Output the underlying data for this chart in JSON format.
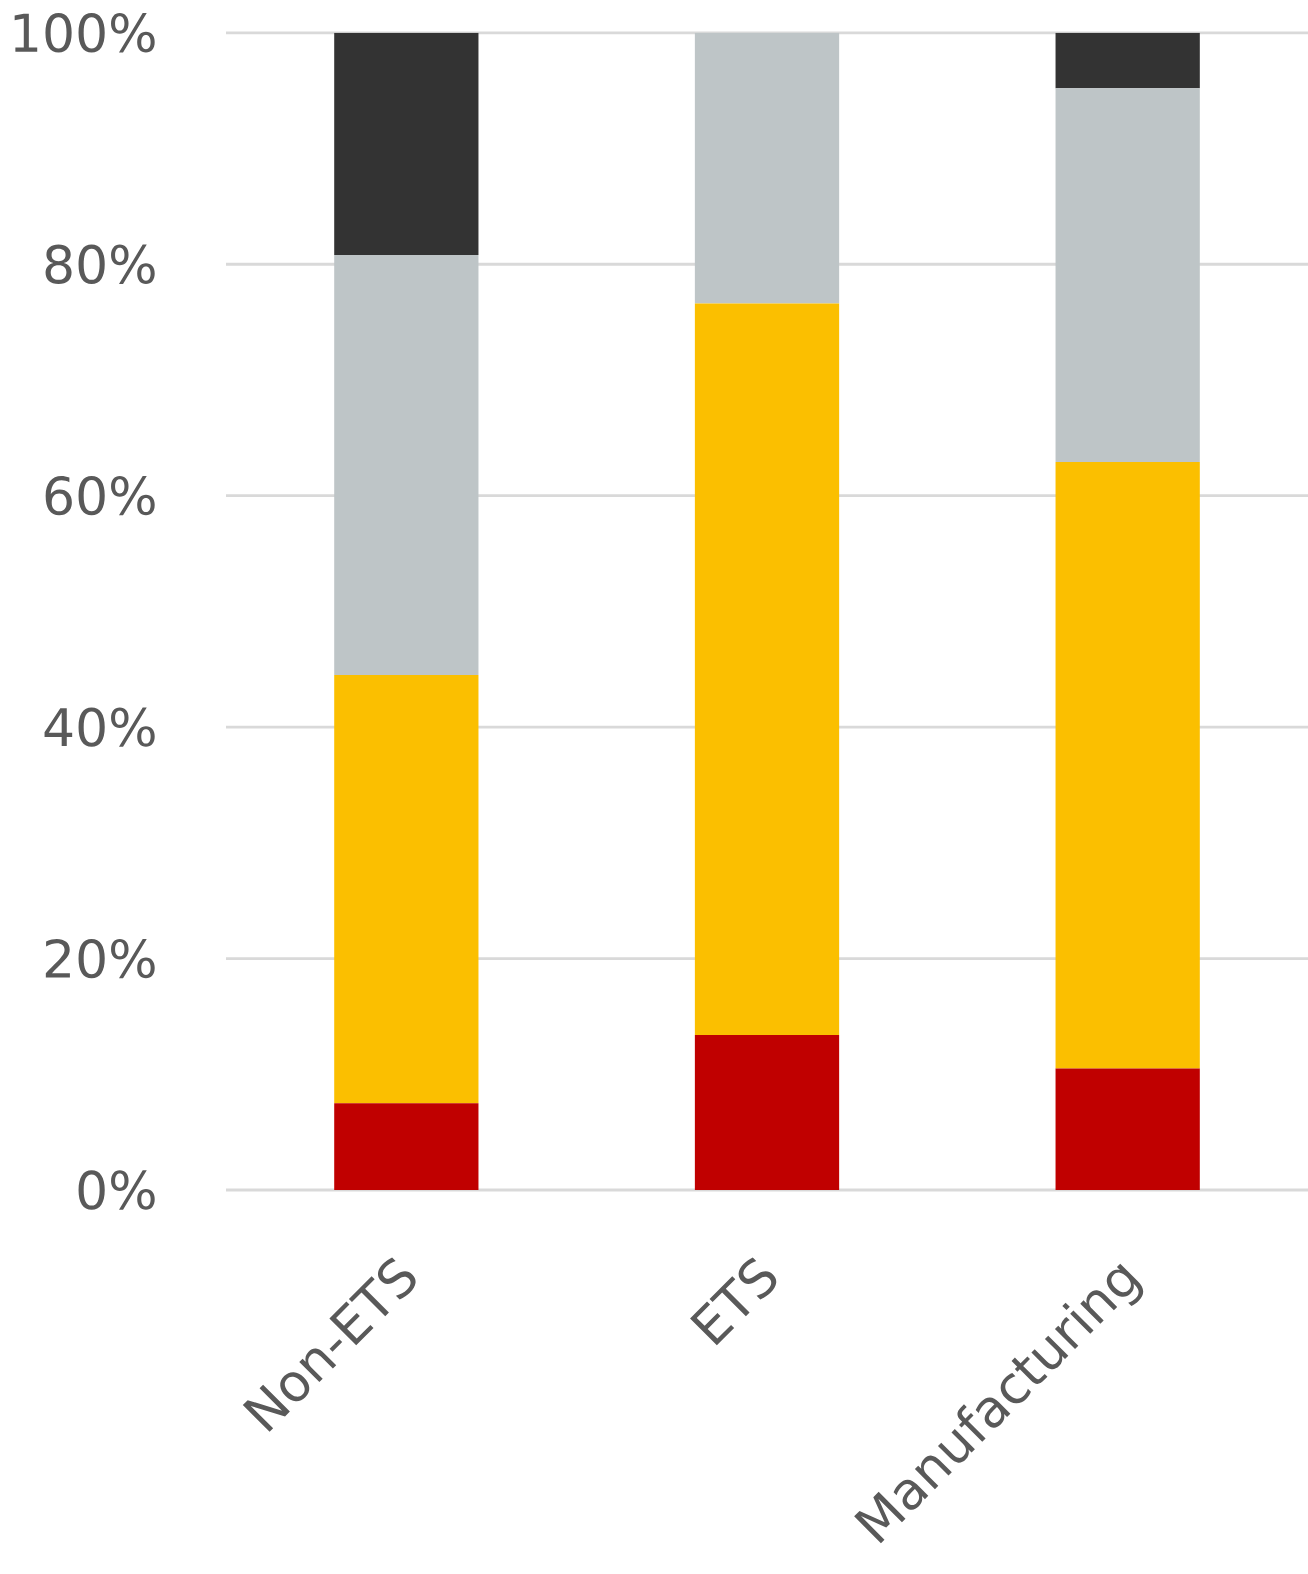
{
  "chart_data": {
    "type": "bar",
    "stacked": true,
    "categories": [
      "Non-ETS",
      "ETS",
      "Manufacturing"
    ],
    "series": [
      {
        "color": "#c00000",
        "values": [
          7.5,
          13.4,
          10.5
        ]
      },
      {
        "color": "#fbbf00",
        "values": [
          37.0,
          63.2,
          52.4
        ]
      },
      {
        "color": "#bec5c7",
        "values": [
          36.3,
          23.4,
          32.3
        ]
      },
      {
        "color": "#333333",
        "values": [
          19.2,
          0,
          4.8
        ]
      }
    ],
    "ylim": [
      0,
      100
    ],
    "yticks": [
      {
        "value": 0,
        "label": "0%"
      },
      {
        "value": 20,
        "label": "20%"
      },
      {
        "value": 40,
        "label": "40%"
      },
      {
        "value": 60,
        "label": "60%"
      },
      {
        "value": 80,
        "label": "80%"
      },
      {
        "value": 100,
        "label": "100%"
      }
    ],
    "grid": "y"
  }
}
